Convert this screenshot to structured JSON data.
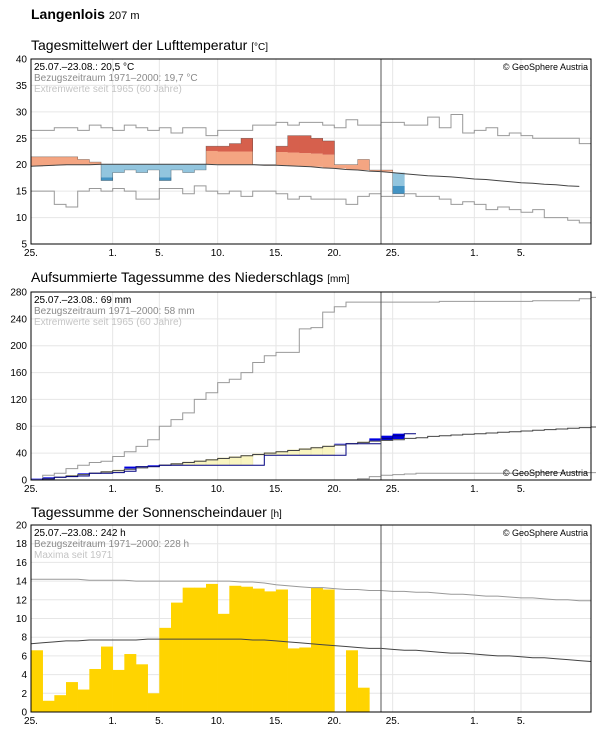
{
  "station": {
    "name": "Langenlois",
    "altitude": "207 m"
  },
  "x_ticks": [
    "25.",
    "1.",
    "5.",
    "10.",
    "15.",
    "20.",
    "25.",
    "1.",
    "5."
  ],
  "copyright": "© GeoSphere Austria",
  "colors": {
    "warm": "#f4a582",
    "hot": "#d6604d",
    "cool": "#92c5de",
    "cold": "#4393c3",
    "precip_plus": "#0000e0",
    "precip_minus": "#f9f5c0",
    "sun": "#ffd400",
    "mean_line": "#444444",
    "extreme_line": "#999999"
  },
  "chart_data": [
    {
      "type": "line",
      "title": "Tagesmittelwert der Lufttemperatur",
      "unit": "[°C]",
      "info": [
        "25.07.–23.08.: 20,5 °C",
        "Bezugszeitraum 1971–2000: 19,7 °C",
        "Extremwerte seit 1965 (60 Jahre)"
      ],
      "ylim": [
        5,
        40
      ],
      "y_ticks": [
        5,
        10,
        15,
        20,
        25,
        30,
        35,
        40
      ],
      "observed": [
        21.5,
        21.5,
        21.5,
        21.5,
        21.0,
        20.5,
        17.0,
        18.5,
        19.0,
        18.5,
        19.0,
        17.0,
        19.0,
        18.5,
        19.0,
        23.5,
        23.5,
        24.0,
        25.0,
        20.0,
        20.0,
        23.5,
        25.5,
        25.5,
        25.0,
        24.5,
        20.0,
        20.0,
        21.0,
        19.0,
        19.0,
        14.5
      ],
      "normal": [
        19.7,
        19.8,
        19.9,
        20.0,
        20.0,
        20.0,
        20.1,
        20.1,
        20.1,
        20.1,
        20.1,
        20.1,
        20.1,
        20.1,
        20.1,
        20.1,
        20.0,
        20.0,
        20.0,
        20.0,
        19.9,
        19.9,
        19.8,
        19.7,
        19.6,
        19.4,
        19.3,
        19.1,
        19.0,
        18.8,
        18.7,
        18.5,
        18.3,
        18.1,
        17.9,
        17.8,
        17.7,
        17.5,
        17.3,
        17.2,
        17.0,
        16.8,
        16.6,
        16.5,
        16.3,
        16.2,
        16.0,
        15.9
      ],
      "max_extreme": [
        26.5,
        26.5,
        27.0,
        27.0,
        26.5,
        27.5,
        27.0,
        26.5,
        27.5,
        27.0,
        26.5,
        27.0,
        26.0,
        27.0,
        27.0,
        25.5,
        26.5,
        26.5,
        26.5,
        27.5,
        27.5,
        28.0,
        27.5,
        28.0,
        28.0,
        27.5,
        27.0,
        28.5,
        27.5,
        27.5,
        28.0,
        28.0,
        27.5,
        27.5,
        29.0,
        27.0,
        29.5,
        26.0,
        26.5,
        27.0,
        25.5,
        26.0,
        25.5,
        25.0,
        25.0,
        25.0,
        25.0,
        24.0
      ],
      "min_extreme": [
        15.0,
        15.0,
        12.5,
        12.0,
        15.0,
        15.5,
        15.0,
        15.5,
        15.0,
        13.5,
        13.5,
        15.5,
        15.5,
        14.5,
        16.0,
        15.0,
        14.5,
        15.0,
        14.0,
        15.0,
        15.0,
        14.5,
        13.5,
        14.0,
        13.5,
        13.5,
        13.5,
        12.5,
        14.0,
        14.5,
        14.0,
        14.0,
        14.5,
        14.0,
        14.0,
        13.5,
        12.5,
        13.0,
        12.5,
        11.5,
        12.0,
        11.5,
        11.0,
        11.5,
        10.0,
        10.0,
        9.5,
        9.0
      ]
    },
    {
      "type": "line",
      "title": "Aufsummierte Tagessumme des Niederschlags",
      "unit": "[mm]",
      "info": [
        "25.07.–23.08.: 69 mm",
        "Bezugszeitraum 1971–2000: 58 mm",
        "Extremwerte seit 1965 (60 Jahre)"
      ],
      "ylim": [
        0,
        280
      ],
      "y_ticks": [
        0,
        40,
        80,
        120,
        160,
        200,
        240,
        280
      ],
      "observed": [
        0,
        2,
        4,
        5,
        6,
        10,
        10,
        11,
        13,
        20,
        20,
        22,
        22,
        22,
        22,
        22,
        22,
        22,
        22,
        22,
        37,
        37,
        37,
        37,
        37,
        37,
        37,
        54,
        54,
        54,
        62,
        66,
        69
      ],
      "normal": [
        0,
        2,
        4,
        6,
        8,
        10,
        12,
        14,
        16,
        18,
        20,
        22,
        24,
        26,
        28,
        30,
        32,
        34,
        36,
        38,
        40,
        42,
        44,
        46,
        48,
        50,
        52,
        54,
        56,
        58,
        59,
        60,
        62,
        63,
        65,
        66,
        67,
        68,
        69,
        70,
        71,
        72,
        73,
        74,
        75,
        76,
        77,
        78,
        79
      ],
      "max_extreme": [
        0,
        7,
        10,
        17,
        22,
        26,
        28,
        35,
        42,
        50,
        60,
        80,
        90,
        100,
        120,
        130,
        145,
        150,
        160,
        175,
        185,
        190,
        190,
        225,
        227,
        250,
        258,
        265,
        265,
        265,
        265,
        265,
        265,
        265,
        265,
        266,
        266,
        266,
        266,
        266,
        266,
        266,
        266,
        267,
        267,
        267,
        267,
        270,
        272
      ],
      "min_extreme": [
        0,
        0,
        0,
        0,
        0,
        0,
        0,
        0,
        0,
        0,
        0,
        0,
        0,
        0,
        0,
        0,
        0,
        0,
        0,
        0,
        0,
        0,
        0,
        0,
        0,
        0,
        0,
        0,
        2,
        5,
        7,
        8,
        9,
        10,
        10,
        10,
        10,
        10,
        10,
        10,
        10,
        10,
        10,
        11,
        11,
        11,
        11,
        11,
        11
      ]
    },
    {
      "type": "bar",
      "title": "Tagessumme der Sonnenscheindauer",
      "unit": "[h]",
      "info": [
        "25.07.–23.08.: 242 h",
        "Bezugszeitraum 1971–2000: 228 h",
        "Maxima seit 1971"
      ],
      "ylim": [
        0,
        20
      ],
      "y_ticks": [
        0,
        2,
        4,
        6,
        8,
        10,
        12,
        14,
        16,
        18,
        20
      ],
      "observed": [
        6.6,
        1.2,
        1.8,
        3.2,
        2.4,
        4.6,
        7.0,
        4.5,
        6.2,
        5.1,
        2.0,
        9.0,
        11.7,
        13.3,
        13.3,
        13.7,
        10.5,
        13.5,
        13.4,
        13.2,
        12.9,
        13.1,
        6.8,
        6.9,
        13.3,
        13.1,
        0,
        6.6,
        2.6
      ],
      "normal": [
        7.3,
        7.4,
        7.5,
        7.6,
        7.6,
        7.7,
        7.7,
        7.7,
        7.7,
        7.7,
        7.8,
        7.8,
        7.8,
        7.8,
        7.8,
        7.8,
        7.8,
        7.8,
        7.8,
        7.7,
        7.7,
        7.6,
        7.5,
        7.4,
        7.3,
        7.2,
        7.1,
        7.0,
        6.9,
        6.8,
        6.8,
        6.7,
        6.6,
        6.6,
        6.5,
        6.4,
        6.3,
        6.3,
        6.2,
        6.1,
        6.0,
        6.0,
        5.9,
        5.8,
        5.8,
        5.7,
        5.6,
        5.5,
        5.4
      ],
      "maxima": [
        14.2,
        14.2,
        14.2,
        14.2,
        14.2,
        14.1,
        14.1,
        14.1,
        14.1,
        14.0,
        14.0,
        14.0,
        14.0,
        14.0,
        14.0,
        14.0,
        14.0,
        14.0,
        13.9,
        13.9,
        13.8,
        13.6,
        13.5,
        13.4,
        13.3,
        13.3,
        13.2,
        13.1,
        13.1,
        13.0,
        13.0,
        12.9,
        12.9,
        12.8,
        12.8,
        12.7,
        12.6,
        12.6,
        12.5,
        12.4,
        12.4,
        12.3,
        12.2,
        12.2,
        12.1,
        12.0,
        12.0,
        11.9,
        11.9
      ]
    }
  ]
}
